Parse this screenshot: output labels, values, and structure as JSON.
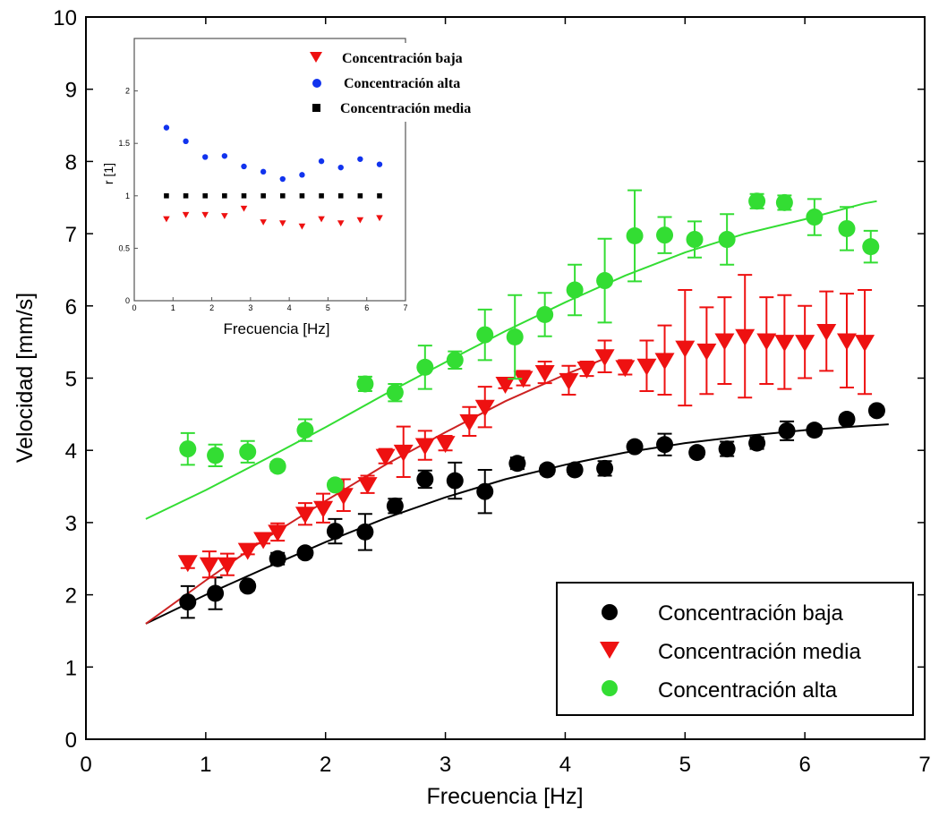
{
  "chart_data": [
    {
      "type": "scatter",
      "title": "",
      "xlabel": "Frecuencia [Hz]",
      "ylabel": "Velocidad [mm/s]",
      "xlim": [
        0,
        7
      ],
      "ylim": [
        0,
        10
      ],
      "xticks": [
        "0",
        "1",
        "2",
        "3",
        "4",
        "5",
        "6",
        "7"
      ],
      "yticks": [
        "0",
        "1",
        "2",
        "3",
        "4",
        "5",
        "6",
        "7",
        "8",
        "9",
        "10"
      ],
      "grid": false,
      "legend_position": "bottom-right",
      "series": [
        {
          "name": "Concentración baja",
          "marker": "circle",
          "color": "#000000",
          "x": [
            0.85,
            1.08,
            1.35,
            1.6,
            1.83,
            2.08,
            2.33,
            2.58,
            2.83,
            3.08,
            3.33,
            3.6,
            3.85,
            4.08,
            4.33,
            4.58,
            4.83,
            5.1,
            5.35,
            5.6,
            5.85,
            6.08,
            6.35,
            6.6
          ],
          "y": [
            1.9,
            2.02,
            2.12,
            2.5,
            2.58,
            2.88,
            2.87,
            3.23,
            3.6,
            3.58,
            3.43,
            3.82,
            3.73,
            3.73,
            3.75,
            4.05,
            4.08,
            3.97,
            4.02,
            4.1,
            4.27,
            4.28,
            4.43,
            4.55
          ],
          "err": [
            0.22,
            0.22,
            0.06,
            0.08,
            0.06,
            0.17,
            0.25,
            0.1,
            0.12,
            0.25,
            0.3,
            0.08,
            0.06,
            0.06,
            0.1,
            0.06,
            0.15,
            0.06,
            0.1,
            0.08,
            0.13,
            0.06,
            0.06,
            0.06
          ],
          "fit_x": [
            0.5,
            1.0,
            1.5,
            2.0,
            2.5,
            3.0,
            3.5,
            4.0,
            4.5,
            5.0,
            5.5,
            6.0,
            6.5,
            6.7
          ],
          "fit_y": [
            1.6,
            2.0,
            2.37,
            2.73,
            3.06,
            3.35,
            3.6,
            3.8,
            3.97,
            4.1,
            4.2,
            4.28,
            4.34,
            4.36
          ]
        },
        {
          "name": "Concentración media",
          "marker": "triangle-down",
          "color": "#ee1111",
          "x": [
            0.85,
            1.03,
            1.18,
            1.35,
            1.48,
            1.6,
            1.83,
            1.98,
            2.15,
            2.35,
            2.5,
            2.65,
            2.83,
            3.0,
            3.2,
            3.33,
            3.5,
            3.65,
            3.83,
            4.03,
            4.18,
            4.33,
            4.5,
            4.68,
            4.83,
            5.0,
            5.18,
            5.33,
            5.5,
            5.68,
            5.83,
            6.0,
            6.18,
            6.35,
            6.5
          ],
          "y": [
            2.45,
            2.42,
            2.42,
            2.62,
            2.77,
            2.87,
            3.12,
            3.2,
            3.38,
            3.53,
            3.92,
            3.98,
            4.07,
            4.1,
            4.4,
            4.6,
            4.92,
            5.0,
            5.08,
            4.97,
            5.13,
            5.3,
            5.15,
            5.17,
            5.25,
            5.42,
            5.38,
            5.52,
            5.58,
            5.52,
            5.5,
            5.5,
            5.65,
            5.52,
            5.5
          ],
          "err": [
            0.08,
            0.18,
            0.15,
            0.06,
            0.06,
            0.12,
            0.15,
            0.2,
            0.22,
            0.12,
            0.1,
            0.35,
            0.2,
            0.1,
            0.2,
            0.28,
            0.06,
            0.1,
            0.15,
            0.2,
            0.1,
            0.22,
            0.1,
            0.35,
            0.48,
            0.8,
            0.6,
            0.6,
            0.85,
            0.6,
            0.65,
            0.5,
            0.55,
            0.65,
            0.72
          ]
        },
        {
          "name": "Concentración alta",
          "marker": "circle",
          "color": "#33dd33",
          "x": [
            0.85,
            1.08,
            1.35,
            1.6,
            1.83,
            2.08,
            2.33,
            2.58,
            2.83,
            3.08,
            3.33,
            3.58,
            3.83,
            4.08,
            4.33,
            4.58,
            4.83,
            5.08,
            5.35,
            5.6,
            5.83,
            6.08,
            6.35,
            6.55
          ],
          "y": [
            4.02,
            3.93,
            3.98,
            3.78,
            4.28,
            3.52,
            4.92,
            4.8,
            5.15,
            5.25,
            5.6,
            5.57,
            5.88,
            6.22,
            6.35,
            6.97,
            6.98,
            6.92,
            6.92,
            7.45,
            7.43,
            7.23,
            7.07,
            6.82
          ],
          "err": [
            0.22,
            0.15,
            0.15,
            0.06,
            0.15,
            0.06,
            0.1,
            0.12,
            0.3,
            0.12,
            0.35,
            0.58,
            0.3,
            0.35,
            0.58,
            0.63,
            0.25,
            0.25,
            0.35,
            0.1,
            0.1,
            0.25,
            0.3,
            0.22
          ],
          "fit_x": [
            0.5,
            1.0,
            1.5,
            2.0,
            2.5,
            3.0,
            3.5,
            4.0,
            4.5,
            5.0,
            5.5,
            6.0,
            6.5,
            6.6
          ],
          "fit_y": [
            3.05,
            3.45,
            3.88,
            4.32,
            4.78,
            5.22,
            5.65,
            6.05,
            6.42,
            6.74,
            7.0,
            7.2,
            7.42,
            7.45
          ]
        },
        {
          "name": "",
          "marker": "none",
          "color": "#cc2222",
          "fit_x": [
            0.5,
            1.0,
            1.5,
            2.0,
            2.5,
            3.0,
            3.5,
            4.0,
            4.3
          ],
          "fit_y": [
            1.6,
            2.2,
            2.78,
            3.3,
            3.8,
            4.25,
            4.68,
            5.05,
            5.25
          ]
        }
      ]
    },
    {
      "type": "scatter",
      "title": "",
      "xlabel": "Frecuencia [Hz]",
      "ylabel": "r [1]",
      "xlim": [
        0,
        7
      ],
      "ylim": [
        0,
        2.5
      ],
      "xticks": [
        "0",
        "1",
        "2",
        "3",
        "4",
        "5",
        "6",
        "7"
      ],
      "yticks": [
        "0",
        "0.5",
        "1",
        "1.5",
        "2"
      ],
      "grid": false,
      "legend_position": "top-right",
      "series": [
        {
          "name": "Concentración baja",
          "marker": "triangle-down",
          "color": "#ee1111",
          "x": [
            0.83,
            1.33,
            1.83,
            2.33,
            2.83,
            3.33,
            3.83,
            4.33,
            4.83,
            5.33,
            5.83,
            6.33
          ],
          "y": [
            0.78,
            0.82,
            0.82,
            0.81,
            0.88,
            0.75,
            0.74,
            0.71,
            0.78,
            0.74,
            0.77,
            0.79
          ]
        },
        {
          "name": "Concentración alta",
          "marker": "circle",
          "color": "#1133ee",
          "x": [
            0.83,
            1.33,
            1.83,
            2.33,
            2.83,
            3.33,
            3.83,
            4.33,
            4.83,
            5.33,
            5.83,
            6.33
          ],
          "y": [
            1.65,
            1.52,
            1.37,
            1.38,
            1.28,
            1.23,
            1.16,
            1.2,
            1.33,
            1.27,
            1.35,
            1.3
          ]
        },
        {
          "name": "Concentración media",
          "marker": "square",
          "color": "#000000",
          "x": [
            0.83,
            1.33,
            1.83,
            2.33,
            2.83,
            3.33,
            3.83,
            4.33,
            4.83,
            5.33,
            5.83,
            6.33
          ],
          "y": [
            1.0,
            1.0,
            1.0,
            1.0,
            1.0,
            1.0,
            1.0,
            1.0,
            1.0,
            1.0,
            1.0,
            1.0
          ]
        }
      ]
    }
  ]
}
